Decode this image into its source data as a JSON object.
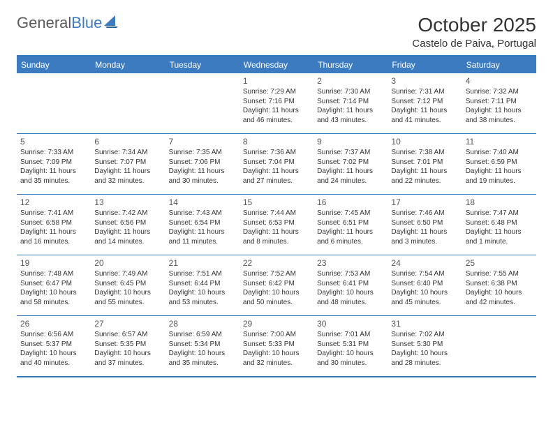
{
  "logo": {
    "word1": "General",
    "word2": "Blue"
  },
  "title": "October 2025",
  "subtitle": "Castelo de Paiva, Portugal",
  "colors": {
    "header_bg": "#3d7bc0",
    "header_text": "#ffffff",
    "border": "#3477b8",
    "text": "#333333",
    "logo_gray": "#5a5a5a",
    "logo_blue": "#3d7bc0"
  },
  "weekdays": [
    "Sunday",
    "Monday",
    "Tuesday",
    "Wednesday",
    "Thursday",
    "Friday",
    "Saturday"
  ],
  "labels": {
    "sunrise": "Sunrise:",
    "sunset": "Sunset:",
    "daylight": "Daylight:"
  },
  "weeks": [
    [
      {
        "empty": true
      },
      {
        "empty": true
      },
      {
        "empty": true
      },
      {
        "n": "1",
        "sr": "7:29 AM",
        "ss": "7:16 PM",
        "dl": "11 hours and 46 minutes."
      },
      {
        "n": "2",
        "sr": "7:30 AM",
        "ss": "7:14 PM",
        "dl": "11 hours and 43 minutes."
      },
      {
        "n": "3",
        "sr": "7:31 AM",
        "ss": "7:12 PM",
        "dl": "11 hours and 41 minutes."
      },
      {
        "n": "4",
        "sr": "7:32 AM",
        "ss": "7:11 PM",
        "dl": "11 hours and 38 minutes."
      }
    ],
    [
      {
        "n": "5",
        "sr": "7:33 AM",
        "ss": "7:09 PM",
        "dl": "11 hours and 35 minutes."
      },
      {
        "n": "6",
        "sr": "7:34 AM",
        "ss": "7:07 PM",
        "dl": "11 hours and 32 minutes."
      },
      {
        "n": "7",
        "sr": "7:35 AM",
        "ss": "7:06 PM",
        "dl": "11 hours and 30 minutes."
      },
      {
        "n": "8",
        "sr": "7:36 AM",
        "ss": "7:04 PM",
        "dl": "11 hours and 27 minutes."
      },
      {
        "n": "9",
        "sr": "7:37 AM",
        "ss": "7:02 PM",
        "dl": "11 hours and 24 minutes."
      },
      {
        "n": "10",
        "sr": "7:38 AM",
        "ss": "7:01 PM",
        "dl": "11 hours and 22 minutes."
      },
      {
        "n": "11",
        "sr": "7:40 AM",
        "ss": "6:59 PM",
        "dl": "11 hours and 19 minutes."
      }
    ],
    [
      {
        "n": "12",
        "sr": "7:41 AM",
        "ss": "6:58 PM",
        "dl": "11 hours and 16 minutes."
      },
      {
        "n": "13",
        "sr": "7:42 AM",
        "ss": "6:56 PM",
        "dl": "11 hours and 14 minutes."
      },
      {
        "n": "14",
        "sr": "7:43 AM",
        "ss": "6:54 PM",
        "dl": "11 hours and 11 minutes."
      },
      {
        "n": "15",
        "sr": "7:44 AM",
        "ss": "6:53 PM",
        "dl": "11 hours and 8 minutes."
      },
      {
        "n": "16",
        "sr": "7:45 AM",
        "ss": "6:51 PM",
        "dl": "11 hours and 6 minutes."
      },
      {
        "n": "17",
        "sr": "7:46 AM",
        "ss": "6:50 PM",
        "dl": "11 hours and 3 minutes."
      },
      {
        "n": "18",
        "sr": "7:47 AM",
        "ss": "6:48 PM",
        "dl": "11 hours and 1 minute."
      }
    ],
    [
      {
        "n": "19",
        "sr": "7:48 AM",
        "ss": "6:47 PM",
        "dl": "10 hours and 58 minutes."
      },
      {
        "n": "20",
        "sr": "7:49 AM",
        "ss": "6:45 PM",
        "dl": "10 hours and 55 minutes."
      },
      {
        "n": "21",
        "sr": "7:51 AM",
        "ss": "6:44 PM",
        "dl": "10 hours and 53 minutes."
      },
      {
        "n": "22",
        "sr": "7:52 AM",
        "ss": "6:42 PM",
        "dl": "10 hours and 50 minutes."
      },
      {
        "n": "23",
        "sr": "7:53 AM",
        "ss": "6:41 PM",
        "dl": "10 hours and 48 minutes."
      },
      {
        "n": "24",
        "sr": "7:54 AM",
        "ss": "6:40 PM",
        "dl": "10 hours and 45 minutes."
      },
      {
        "n": "25",
        "sr": "7:55 AM",
        "ss": "6:38 PM",
        "dl": "10 hours and 42 minutes."
      }
    ],
    [
      {
        "n": "26",
        "sr": "6:56 AM",
        "ss": "5:37 PM",
        "dl": "10 hours and 40 minutes."
      },
      {
        "n": "27",
        "sr": "6:57 AM",
        "ss": "5:35 PM",
        "dl": "10 hours and 37 minutes."
      },
      {
        "n": "28",
        "sr": "6:59 AM",
        "ss": "5:34 PM",
        "dl": "10 hours and 35 minutes."
      },
      {
        "n": "29",
        "sr": "7:00 AM",
        "ss": "5:33 PM",
        "dl": "10 hours and 32 minutes."
      },
      {
        "n": "30",
        "sr": "7:01 AM",
        "ss": "5:31 PM",
        "dl": "10 hours and 30 minutes."
      },
      {
        "n": "31",
        "sr": "7:02 AM",
        "ss": "5:30 PM",
        "dl": "10 hours and 28 minutes."
      },
      {
        "empty": true
      }
    ]
  ]
}
